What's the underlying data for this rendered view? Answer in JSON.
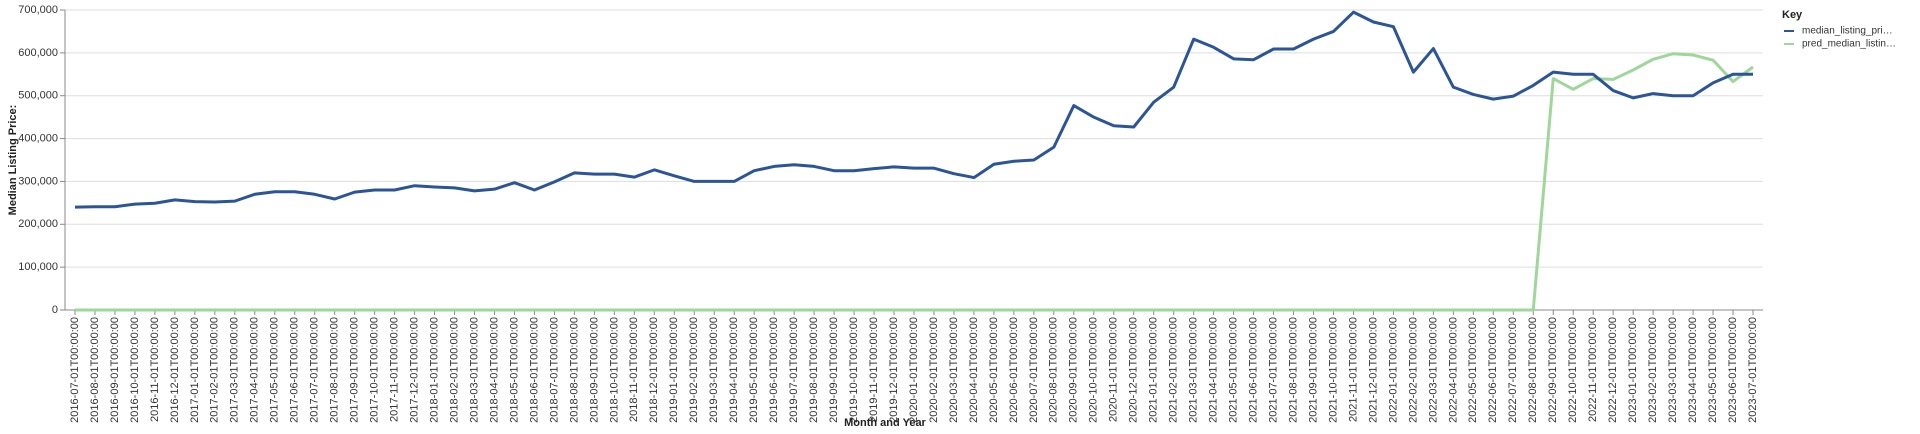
{
  "chart_data": {
    "type": "line",
    "x_label": "Month and Year",
    "y_label": "Median Listing Price:",
    "legend_title": "Key",
    "legend": "top-right",
    "grid": true,
    "categories": [
      "2016-07-01T00:00:00",
      "2016-08-01T00:00:00",
      "2016-09-01T00:00:00",
      "2016-10-01T00:00:00",
      "2016-11-01T00:00:00",
      "2016-12-01T00:00:00",
      "2017-01-01T00:00:00",
      "2017-02-01T00:00:00",
      "2017-03-01T00:00:00",
      "2017-04-01T00:00:00",
      "2017-05-01T00:00:00",
      "2017-06-01T00:00:00",
      "2017-07-01T00:00:00",
      "2017-08-01T00:00:00",
      "2017-09-01T00:00:00",
      "2017-10-01T00:00:00",
      "2017-11-01T00:00:00",
      "2017-12-01T00:00:00",
      "2018-01-01T00:00:00",
      "2018-02-01T00:00:00",
      "2018-03-01T00:00:00",
      "2018-04-01T00:00:00",
      "2018-05-01T00:00:00",
      "2018-06-01T00:00:00",
      "2018-07-01T00:00:00",
      "2018-08-01T00:00:00",
      "2018-09-01T00:00:00",
      "2018-10-01T00:00:00",
      "2018-11-01T00:00:00",
      "2018-12-01T00:00:00",
      "2019-01-01T00:00:00",
      "2019-02-01T00:00:00",
      "2019-03-01T00:00:00",
      "2019-04-01T00:00:00",
      "2019-05-01T00:00:00",
      "2019-06-01T00:00:00",
      "2019-07-01T00:00:00",
      "2019-08-01T00:00:00",
      "2019-09-01T00:00:00",
      "2019-10-01T00:00:00",
      "2019-11-01T00:00:00",
      "2019-12-01T00:00:00",
      "2020-01-01T00:00:00",
      "2020-02-01T00:00:00",
      "2020-03-01T00:00:00",
      "2020-04-01T00:00:00",
      "2020-05-01T00:00:00",
      "2020-06-01T00:00:00",
      "2020-07-01T00:00:00",
      "2020-08-01T00:00:00",
      "2020-09-01T00:00:00",
      "2020-10-01T00:00:00",
      "2020-11-01T00:00:00",
      "2020-12-01T00:00:00",
      "2021-01-01T00:00:00",
      "2021-02-01T00:00:00",
      "2021-03-01T00:00:00",
      "2021-04-01T00:00:00",
      "2021-05-01T00:00:00",
      "2021-06-01T00:00:00",
      "2021-07-01T00:00:00",
      "2021-08-01T00:00:00",
      "2021-09-01T00:00:00",
      "2021-10-01T00:00:00",
      "2021-11-01T00:00:00",
      "2021-12-01T00:00:00",
      "2022-01-01T00:00:00",
      "2022-02-01T00:00:00",
      "2022-03-01T00:00:00",
      "2022-04-01T00:00:00",
      "2022-05-01T00:00:00",
      "2022-06-01T00:00:00",
      "2022-07-01T00:00:00",
      "2022-08-01T00:00:00",
      "2022-09-01T00:00:00",
      "2022-10-01T00:00:00",
      "2022-11-01T00:00:00",
      "2022-12-01T00:00:00",
      "2023-01-01T00:00:00",
      "2023-02-01T00:00:00",
      "2023-03-01T00:00:00",
      "2023-04-01T00:00:00",
      "2023-05-01T00:00:00",
      "2023-06-01T00:00:00",
      "2023-07-01T00:00:00"
    ],
    "series": [
      {
        "name": "median_listing_pri…",
        "color": "#2b5597",
        "values": [
          240000,
          241000,
          241000,
          247000,
          249000,
          257000,
          253000,
          252000,
          254000,
          270000,
          276000,
          276000,
          270000,
          259000,
          275000,
          280000,
          280000,
          290000,
          287000,
          285000,
          278000,
          282000,
          297000,
          280000,
          299000,
          320000,
          317000,
          317000,
          310000,
          327000,
          313000,
          300000,
          300000,
          300000,
          325000,
          335000,
          339000,
          335000,
          325000,
          325000,
          330000,
          334000,
          331000,
          331000,
          318000,
          309000,
          340000,
          347000,
          350000,
          380000,
          477000,
          450000,
          430000,
          427000,
          485000,
          520000,
          632000,
          613000,
          586000,
          584000,
          609000,
          609000,
          632000,
          650000,
          695000,
          672000,
          661000,
          555000,
          610000,
          520000,
          503000,
          492000,
          499000,
          524000,
          555000,
          550000,
          550000,
          512000,
          495000,
          505000,
          500000,
          500000,
          530000,
          550000,
          550000
        ]
      },
      {
        "name": "pred_median_listin…",
        "color": "#9ed799",
        "values": [
          0,
          0,
          0,
          0,
          0,
          0,
          0,
          0,
          0,
          0,
          0,
          0,
          0,
          0,
          0,
          0,
          0,
          0,
          0,
          0,
          0,
          0,
          0,
          0,
          0,
          0,
          0,
          0,
          0,
          0,
          0,
          0,
          0,
          0,
          0,
          0,
          0,
          0,
          0,
          0,
          0,
          0,
          0,
          0,
          0,
          0,
          0,
          0,
          0,
          0,
          0,
          0,
          0,
          0,
          0,
          0,
          0,
          0,
          0,
          0,
          0,
          0,
          0,
          0,
          0,
          0,
          0,
          0,
          0,
          0,
          0,
          0,
          0,
          0,
          540000,
          515000,
          540000,
          538000,
          560000,
          585000,
          598000,
          595000,
          583000,
          533000,
          567000
        ]
      }
    ],
    "ylim": [
      0,
      700000
    ],
    "yticks": [
      0,
      {
        "value": 100000,
        "label": "100,000"
      },
      {
        "value": 200000,
        "label": "200,000"
      },
      {
        "value": 300000,
        "label": "300,000"
      },
      {
        "value": 400000,
        "label": "400,000"
      },
      {
        "value": 500000,
        "label": "500,000"
      },
      {
        "value": 600000,
        "label": "600,000"
      },
      {
        "value": 700000,
        "label": "700,000"
      }
    ]
  }
}
